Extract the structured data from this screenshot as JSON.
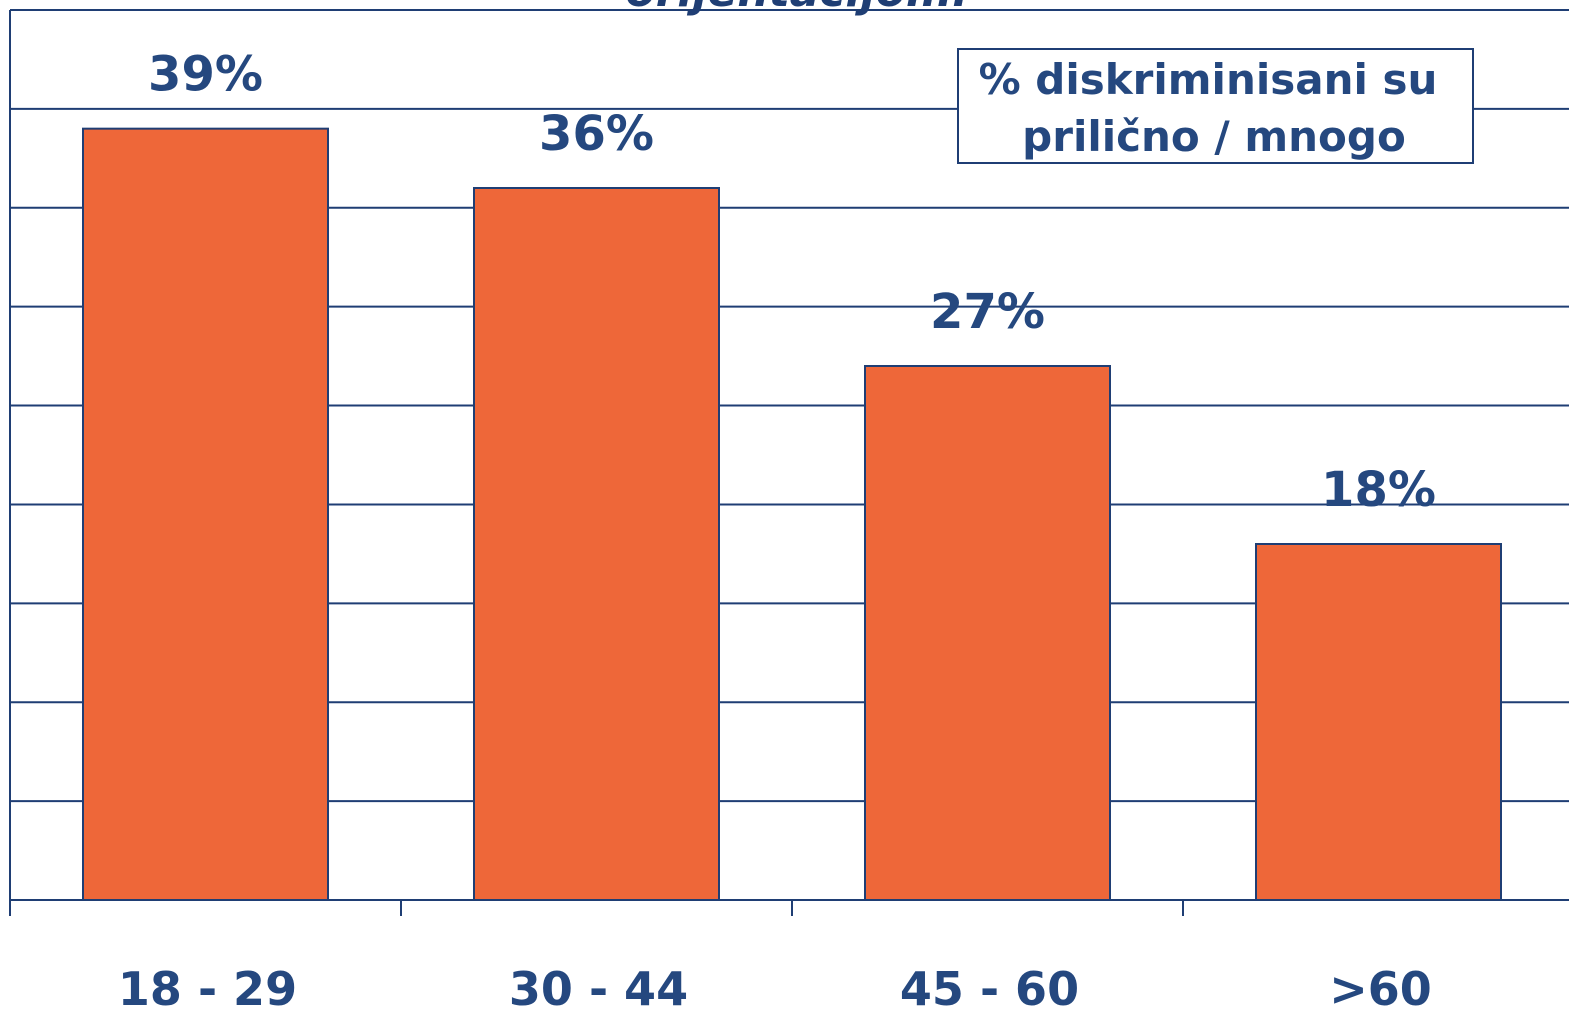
{
  "chart_data": {
    "type": "bar",
    "title": "orijentacijom.",
    "categories": [
      "18 - 29",
      "30 - 44",
      "45 - 60",
      ">60"
    ],
    "values": [
      39,
      36,
      27,
      18
    ],
    "value_labels": [
      "39%",
      "36%",
      "27%",
      "18%"
    ],
    "ylim": [
      0,
      45
    ],
    "grid": true,
    "legend": {
      "lines": [
        "% diskriminisani su",
        "prilično / mnogo"
      ],
      "placement": "top-right"
    },
    "colors": {
      "bar_fill": "#ee6739",
      "bar_stroke": "#1f3e74",
      "grid": "#1f3e74",
      "text": "#25487f"
    }
  }
}
